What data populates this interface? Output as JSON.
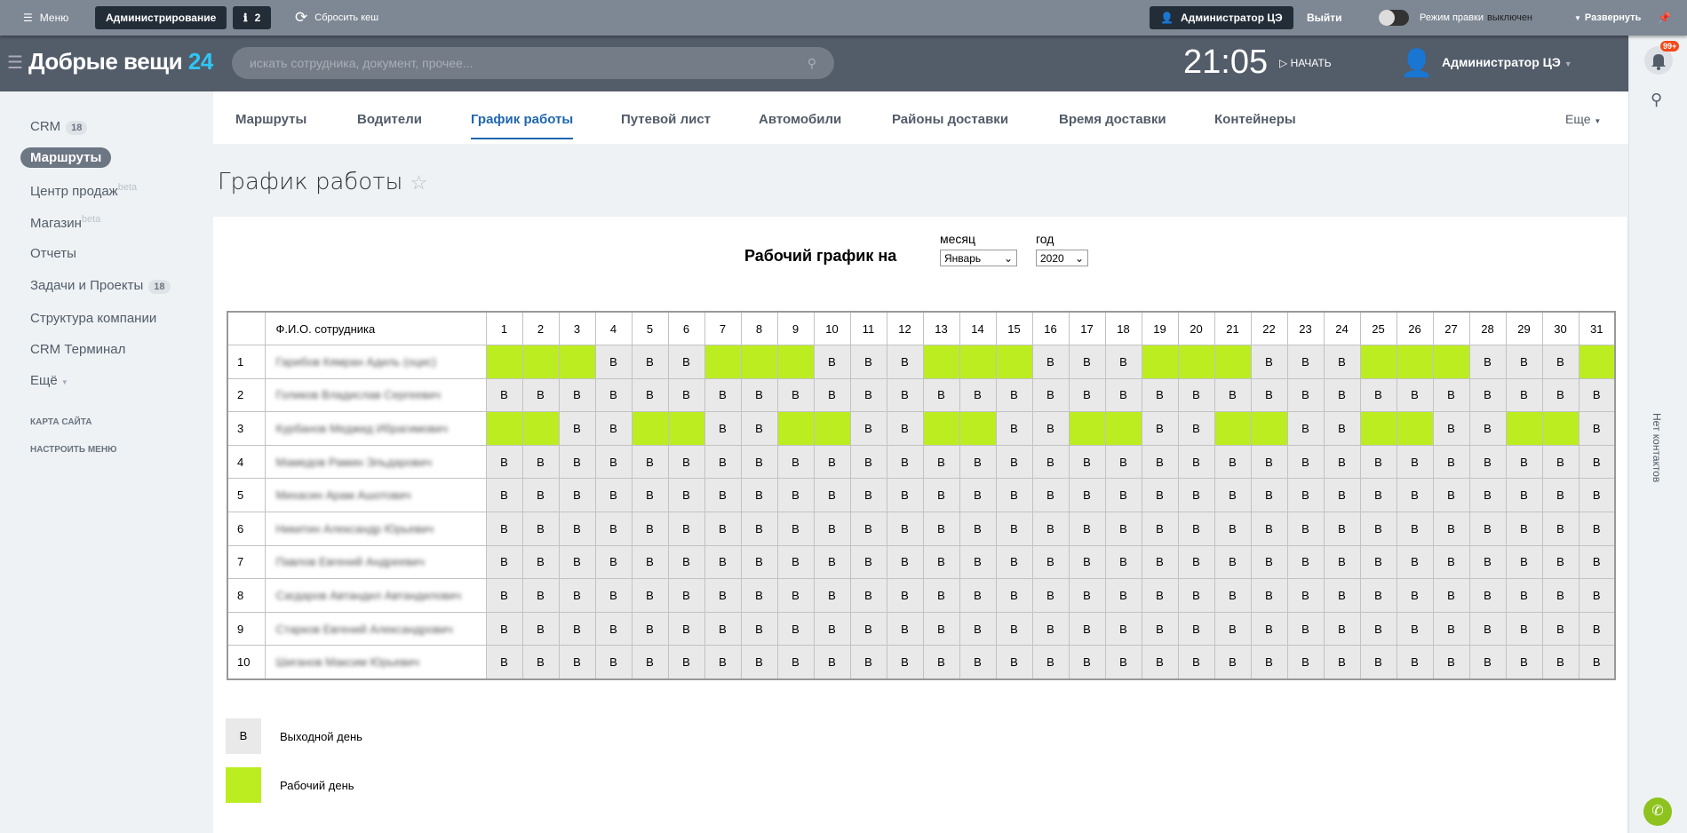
{
  "topbar": {
    "menu": "Меню",
    "admin": "Администрирование",
    "notices": "2",
    "reset_cache": "Сбросить кеш",
    "user": "Администратор ЦЭ",
    "logout": "Выйти",
    "edit_mode": "Режим правки",
    "edit_state": "выключен",
    "expand": "Развернуть"
  },
  "header": {
    "logo": "Добрые вещи",
    "logo_num": "24",
    "search_placeholder": "искать сотрудника, документ, прочее...",
    "time": "21:05",
    "start": "НАЧАТЬ",
    "user": "Администратор ЦЭ"
  },
  "sidebar": {
    "items": [
      {
        "label": "CRM",
        "count": "18"
      },
      {
        "label": "Маршруты"
      },
      {
        "label": "Центр продаж",
        "sup": "beta"
      },
      {
        "label": "Магазин",
        "sup": "beta"
      },
      {
        "label": "Отчеты"
      },
      {
        "label": "Задачи и Проекты",
        "count": "18"
      },
      {
        "label": "Структура компании"
      },
      {
        "label": "CRM Терминал"
      },
      {
        "label": "Ещё"
      }
    ],
    "sitemap": "КАРТА САЙТА",
    "configure": "НАСТРОИТЬ МЕНЮ"
  },
  "tabs": [
    "Маршруты",
    "Водители",
    "График работы",
    "Путевой лист",
    "Автомобили",
    "Районы доставки",
    "Время доставки",
    "Контейнеры"
  ],
  "tabs_more": "Еще",
  "page_title": "График работы",
  "right": {
    "badge": "99+",
    "no_contacts": "Нет контактов"
  },
  "schedule": {
    "heading": "Рабочий график на",
    "month_label": "месяц",
    "month": "Январь",
    "year_label": "год",
    "year": "2020",
    "name_header": "Ф.И.О. сотрудника",
    "rows": [
      {
        "name": "Гарибов Кямран Адиль (оцис)",
        "days": "WWWOOOWWWOOOWWWOOOWWWOOOWWWOOOW"
      },
      {
        "name": "Голиков Владислав Сергеевич",
        "days": "OOOOOOOOOOOOOOOOOOOOOOOOOOOOOOO"
      },
      {
        "name": "Курбанов Меджид Ибрагимович",
        "days": "WWOOWWOOWWOOWWOOWWOOWWOOWWOOWWO"
      },
      {
        "name": "Мамедов Рамин Эльдарович",
        "days": "OOOOOOOOOOOOOOOOOOOOOOOOOOOOOOO"
      },
      {
        "name": "Михасин Арам Ашотович",
        "days": "OOOOOOOOOOOOOOOOOOOOOOOOOOOOOOO"
      },
      {
        "name": "Никитин Александр Юрьевич",
        "days": "OOOOOOOOOOOOOOOOOOOOOOOOOOOOOOO"
      },
      {
        "name": "Павлов Евгений Андреевич",
        "days": "OOOOOOOOOOOOOOOOOOOOOOOOOOOOOOO"
      },
      {
        "name": "Сагдаров Автандил Автандилович",
        "days": "OOOOOOOOOOOOOOOOOOOOOOOOOOOOOOO"
      },
      {
        "name": "Старков Евгений Александрович",
        "days": "OOOOOOOOOOOOOOOOOOOOOOOOOOOOOOO"
      },
      {
        "name": "Шиганов Максим Юрьевич",
        "days": "OOOOOOOOOOOOOOOOOOOOOOOOOOOOOOO"
      }
    ],
    "off_mark": "В",
    "legend": {
      "off": "Выходной день",
      "work": "Рабочий день"
    },
    "colors": {
      "work": "#bbed21",
      "off": "#e9e9e9"
    }
  }
}
